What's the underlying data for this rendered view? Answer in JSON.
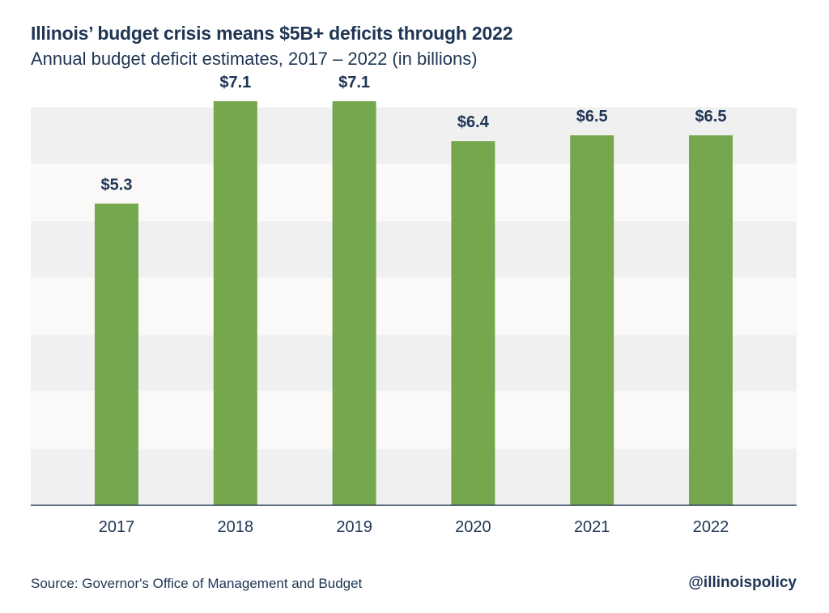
{
  "title": "Illinois’ budget crisis means $5B+ deficits through 2022",
  "subtitle": "Annual budget deficit estimates, 2017 – 2022 (in billions)",
  "source": "Source: Governor's Office of Management and Budget",
  "handle": "@illinoispolicy",
  "colors": {
    "bar": "#75a84e",
    "text": "#1e3554",
    "band_dark": "#f0f0f0",
    "band_light": "#faf9f7",
    "axis": "#2b3f5c"
  },
  "chart_data": {
    "type": "bar",
    "categories": [
      "2017",
      "2018",
      "2019",
      "2020",
      "2021",
      "2022"
    ],
    "values": [
      5.3,
      7.1,
      7.1,
      6.4,
      6.5,
      6.5
    ],
    "data_labels": [
      "$5.3",
      "$7.1",
      "$7.1",
      "$6.4",
      "$6.5",
      "$6.5"
    ],
    "title": "Illinois’ budget crisis means $5B+ deficits through 2022",
    "subtitle": "Annual budget deficit estimates, 2017 – 2022 (in billions)",
    "ylim": [
      0,
      7
    ],
    "grid": true
  }
}
